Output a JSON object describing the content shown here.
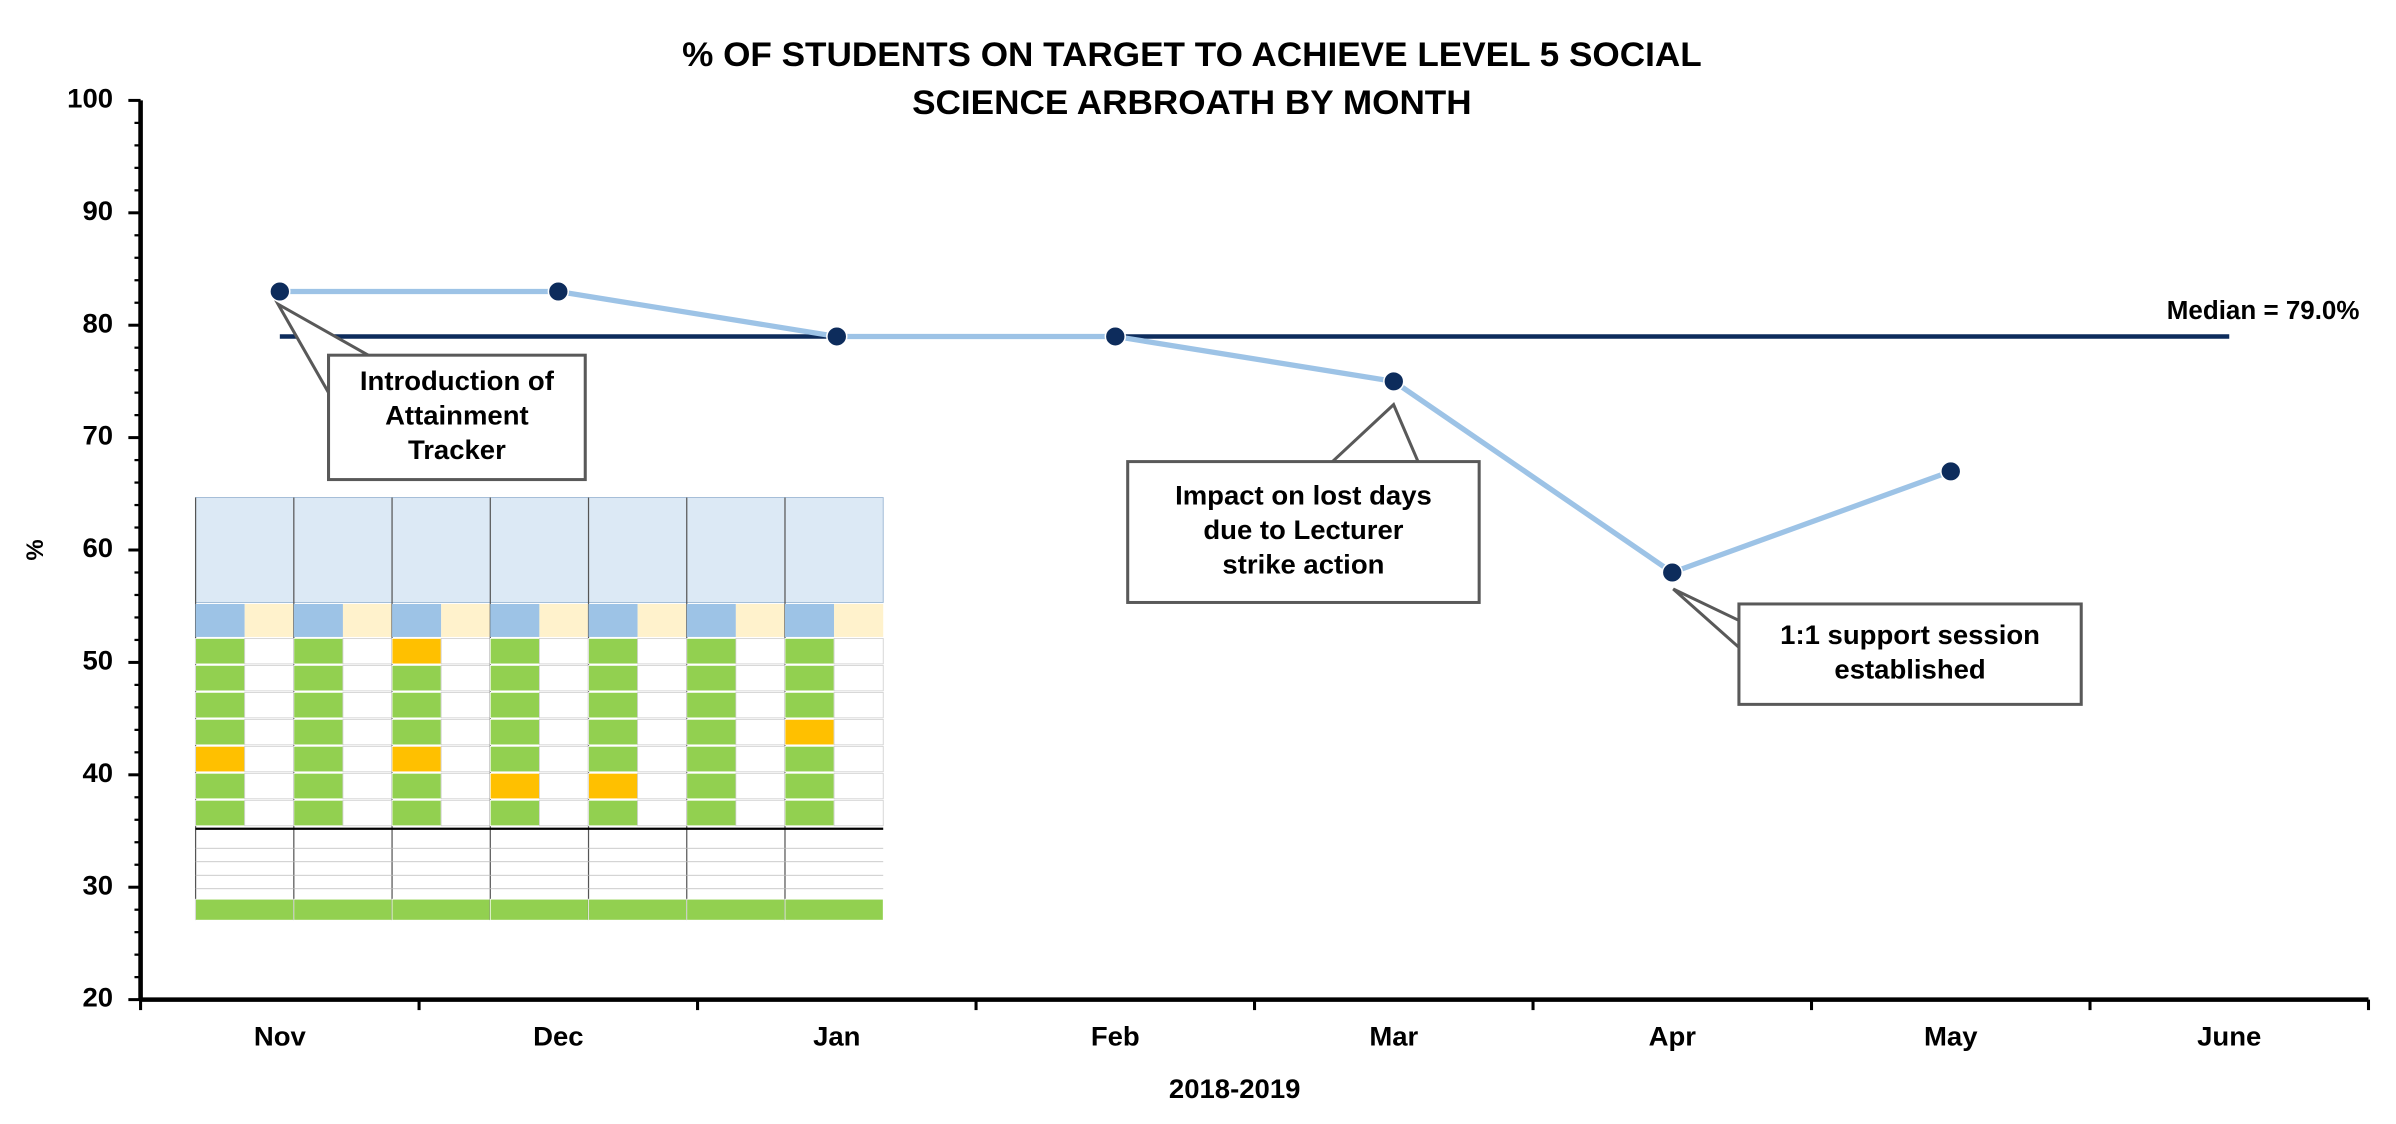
{
  "chart_data": {
    "type": "line",
    "title": [
      "% OF STUDENTS ON TARGET TO ACHIEVE LEVEL 5 SOCIAL",
      "SCIENCE ARBROATH BY MONTH"
    ],
    "x_label": "2018-2019",
    "y_label": "%",
    "categories": [
      "Nov",
      "Dec",
      "Jan",
      "Feb",
      "Mar",
      "Apr",
      "May",
      "June"
    ],
    "values": [
      83,
      83,
      79,
      79,
      75,
      58,
      67,
      null
    ],
    "color": "#9dc3e6",
    "marker_color": "#0d2c5c",
    "median": {
      "value": 79,
      "label": "Median = 79.0%",
      "color": "#0d2c5c"
    },
    "ylim": [
      20,
      100
    ],
    "yticks": [
      20,
      30,
      40,
      50,
      60,
      70,
      80,
      90,
      100
    ],
    "annotations": [
      {
        "text": [
          "Introduction of",
          "Attainment",
          "Tracker"
        ]
      },
      {
        "text": [
          "Impact on lost days",
          "due to Lecturer",
          "strike action"
        ]
      },
      {
        "text": [
          "1:1 support session",
          "established"
        ]
      }
    ]
  }
}
